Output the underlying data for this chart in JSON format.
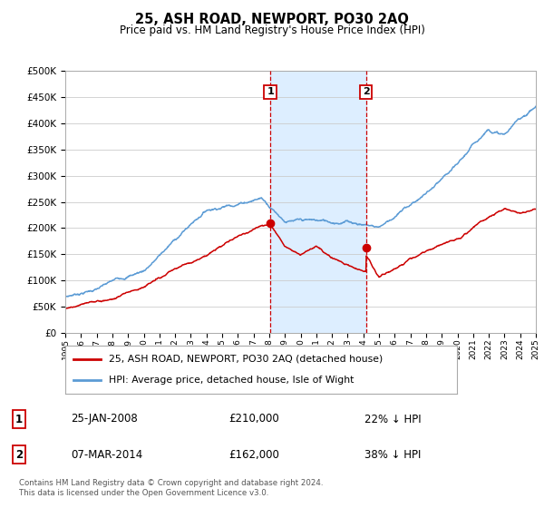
{
  "title": "25, ASH ROAD, NEWPORT, PO30 2AQ",
  "subtitle": "Price paid vs. HM Land Registry's House Price Index (HPI)",
  "legend_label_red": "25, ASH ROAD, NEWPORT, PO30 2AQ (detached house)",
  "legend_label_blue": "HPI: Average price, detached house, Isle of Wight",
  "annotation1_date": "25-JAN-2008",
  "annotation1_price": 210000,
  "annotation1_pct": "22% ↓ HPI",
  "annotation2_date": "07-MAR-2014",
  "annotation2_price": 162000,
  "annotation2_pct": "38% ↓ HPI",
  "footer": "Contains HM Land Registry data © Crown copyright and database right 2024.\nThis data is licensed under the Open Government Licence v3.0.",
  "red_color": "#cc0000",
  "blue_color": "#5b9bd5",
  "annotation_color": "#cc0000",
  "shading_color": "#ddeeff",
  "background_color": "#ffffff",
  "ylim": [
    0,
    500000
  ],
  "yticks": [
    0,
    50000,
    100000,
    150000,
    200000,
    250000,
    300000,
    350000,
    400000,
    450000,
    500000
  ],
  "year_start": 1995,
  "year_end": 2025,
  "annotation1_year": 2008.07,
  "annotation2_year": 2014.18
}
